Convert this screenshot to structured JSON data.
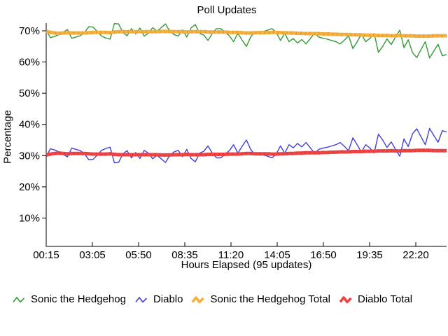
{
  "chart_data": {
    "type": "line",
    "title": "Poll Updates",
    "xlabel": "Hours Elapsed (95 updates)",
    "ylabel": "Percentage",
    "x_tick_labels": [
      "00:15",
      "03:05",
      "05:50",
      "08:35",
      "11:20",
      "14:05",
      "16:50",
      "19:35",
      "22:20"
    ],
    "y_tick_labels": [
      "70%",
      "60%",
      "50%",
      "40%",
      "30%",
      "20%",
      "10%"
    ],
    "y_tick_values": [
      70,
      60,
      50,
      40,
      30,
      20,
      10
    ],
    "ylim": [
      1,
      72.5
    ],
    "grid": false,
    "legend_position": "bottom",
    "n_points": 95,
    "series": [
      {
        "name": "Sonic the Hedgehog",
        "color": "#339933",
        "thick": false,
        "values": [
          70.2,
          67.8,
          68.2,
          68.8,
          69.6,
          70.4,
          67.6,
          68.0,
          68.4,
          69.5,
          71.3,
          71.2,
          69.8,
          68.3,
          67.7,
          67.3,
          72.3,
          72.2,
          69.5,
          68.4,
          70.7,
          69.0,
          70.9,
          68.3,
          69.2,
          71.0,
          69.9,
          71.0,
          72.2,
          69.9,
          68.8,
          68.3,
          70.3,
          68.0,
          70.9,
          72.0,
          69.2,
          68.6,
          66.9,
          69.2,
          70.7,
          70.7,
          69.5,
          68.4,
          66.5,
          69.2,
          67.0,
          65.0,
          68.0,
          69.7,
          69.8,
          69.8,
          70.2,
          70.7,
          69.5,
          66.9,
          69.2,
          66.5,
          67.5,
          66.1,
          67.2,
          65.8,
          67.5,
          69.2,
          68.0,
          67.6,
          67.3,
          66.9,
          66.5,
          65.8,
          67.0,
          68.4,
          64.3,
          66.5,
          68.9,
          66.5,
          67.6,
          69.1,
          63.1,
          65.0,
          67.4,
          65.6,
          68.0,
          70.2,
          64.6,
          67.1,
          63.0,
          61.4,
          64.0,
          66.5,
          61.3,
          63.5,
          65.7,
          62.0,
          62.4
        ]
      },
      {
        "name": "Diablo",
        "color": "#4040d8",
        "thick": false,
        "values": [
          29.8,
          32.2,
          31.8,
          31.2,
          30.4,
          29.6,
          32.4,
          32.0,
          31.6,
          30.5,
          28.7,
          28.8,
          30.2,
          31.7,
          32.3,
          32.7,
          27.7,
          27.8,
          30.5,
          31.6,
          29.3,
          31.0,
          29.1,
          31.7,
          30.8,
          29.0,
          30.1,
          29.0,
          27.8,
          30.1,
          31.2,
          31.7,
          29.7,
          32.0,
          29.1,
          28.0,
          30.8,
          31.4,
          33.1,
          30.8,
          29.3,
          29.3,
          30.5,
          31.6,
          33.5,
          30.8,
          33.0,
          35.0,
          32.0,
          30.3,
          30.2,
          30.2,
          29.8,
          29.3,
          30.5,
          33.1,
          30.8,
          33.5,
          32.5,
          33.9,
          32.8,
          34.2,
          32.5,
          30.8,
          32.0,
          32.4,
          32.7,
          33.1,
          33.5,
          34.2,
          33.0,
          31.6,
          35.7,
          33.5,
          31.1,
          33.5,
          32.4,
          30.9,
          36.9,
          35.0,
          32.6,
          34.4,
          32.0,
          29.8,
          35.4,
          32.9,
          37.0,
          38.6,
          36.0,
          33.5,
          38.7,
          36.5,
          34.3,
          38.0,
          37.6
        ]
      },
      {
        "name": "Sonic the Hedgehog Total",
        "color": "#f5af3c",
        "thick": true,
        "values": [
          69.8,
          69.5,
          69.3,
          69.2,
          69.3,
          69.4,
          69.3,
          69.3,
          69.3,
          69.3,
          69.4,
          69.5,
          69.5,
          69.5,
          69.5,
          69.4,
          69.6,
          69.7,
          69.7,
          69.7,
          69.7,
          69.7,
          69.7,
          69.7,
          69.7,
          69.7,
          69.7,
          69.8,
          69.8,
          69.8,
          69.7,
          69.7,
          69.7,
          69.6,
          69.7,
          69.7,
          69.7,
          69.7,
          69.6,
          69.6,
          69.6,
          69.6,
          69.6,
          69.5,
          69.5,
          69.5,
          69.4,
          69.3,
          69.3,
          69.4,
          69.4,
          69.4,
          69.4,
          69.5,
          69.5,
          69.4,
          69.4,
          69.3,
          69.3,
          69.2,
          69.2,
          69.1,
          69.1,
          69.1,
          69.1,
          69.0,
          69.0,
          68.9,
          68.9,
          68.8,
          68.8,
          68.8,
          68.7,
          68.7,
          68.7,
          68.6,
          68.6,
          68.6,
          68.5,
          68.5,
          68.5,
          68.4,
          68.5,
          68.5,
          68.4,
          68.4,
          68.4,
          68.3,
          68.3,
          68.3,
          68.3,
          68.4,
          68.4,
          68.4,
          68.4
        ]
      },
      {
        "name": "Diablo Total",
        "color": "#ee4444",
        "thick": true,
        "values": [
          30.2,
          30.5,
          30.7,
          30.8,
          30.7,
          30.6,
          30.7,
          30.7,
          30.7,
          30.7,
          30.6,
          30.5,
          30.5,
          30.5,
          30.5,
          30.6,
          30.4,
          30.3,
          30.3,
          30.3,
          30.3,
          30.3,
          30.3,
          30.3,
          30.3,
          30.3,
          30.3,
          30.2,
          30.2,
          30.2,
          30.3,
          30.3,
          30.3,
          30.4,
          30.3,
          30.3,
          30.3,
          30.3,
          30.4,
          30.4,
          30.4,
          30.4,
          30.4,
          30.5,
          30.5,
          30.5,
          30.6,
          30.7,
          30.7,
          30.6,
          30.6,
          30.6,
          30.6,
          30.5,
          30.5,
          30.6,
          30.6,
          30.7,
          30.7,
          30.8,
          30.8,
          30.9,
          30.9,
          30.9,
          30.9,
          31.0,
          31.0,
          31.1,
          31.1,
          31.2,
          31.2,
          31.2,
          31.3,
          31.3,
          31.3,
          31.4,
          31.4,
          31.4,
          31.5,
          31.5,
          31.5,
          31.6,
          31.5,
          31.5,
          31.6,
          31.6,
          31.6,
          31.7,
          31.7,
          31.7,
          31.7,
          31.6,
          31.6,
          31.6,
          31.6
        ]
      }
    ]
  }
}
